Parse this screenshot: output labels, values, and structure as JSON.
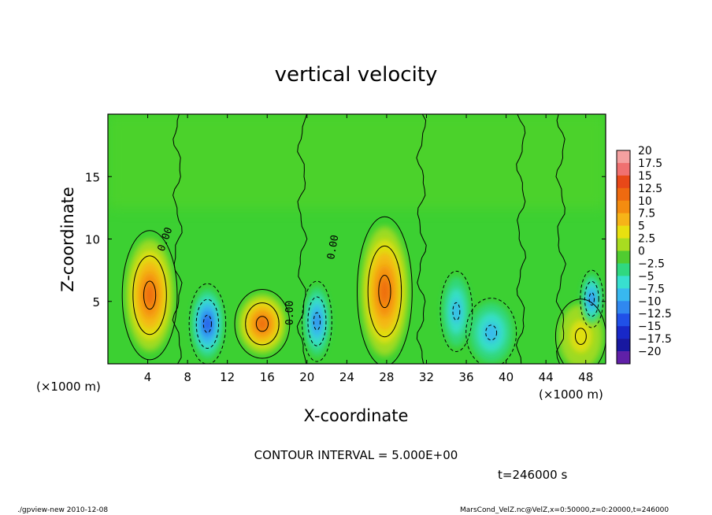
{
  "chart_data": {
    "type": "heatmap",
    "title": "vertical velocity",
    "xlabel": "X-coordinate",
    "ylabel": "Z-coordinate",
    "x_unit_left": "(×1000 m)",
    "x_unit_right": "(×1000 m)",
    "xlim": [
      0,
      50
    ],
    "ylim": [
      0,
      20
    ],
    "xticks": [
      4,
      8,
      12,
      16,
      20,
      24,
      28,
      32,
      36,
      40,
      44,
      48
    ],
    "yticks": [
      5,
      10,
      15
    ],
    "colorbar": {
      "levels": [
        "20",
        "17.5",
        "15",
        "12.5",
        "10",
        "7.5",
        "5",
        "2.5",
        "0",
        "−2.5",
        "−5",
        "−7.5",
        "−10",
        "−12.5",
        "−15",
        "−17.5",
        "−20"
      ],
      "colors": [
        "#f4a0a0",
        "#f07070",
        "#e84818",
        "#ee6a10",
        "#f48c10",
        "#f6b418",
        "#e8e010",
        "#a8dc20",
        "#50cc30",
        "#30d880",
        "#38e0d0",
        "#38b8f0",
        "#3088f0",
        "#2050e8",
        "#1828c8",
        "#1818a0",
        "#6020a8"
      ]
    },
    "contour_interval_text": "CONTOUR INTERVAL = 5.000E+00",
    "contour_labels": [
      "0.00",
      "0.00",
      "0.00"
    ],
    "features": [
      {
        "x": 4.2,
        "z": 5.5,
        "value": 12.5
      },
      {
        "x": 10.0,
        "z": 3.2,
        "value": -12.5
      },
      {
        "x": 15.5,
        "z": 3.2,
        "value": 12.5
      },
      {
        "x": 21.0,
        "z": 3.4,
        "value": -10
      },
      {
        "x": 27.8,
        "z": 5.8,
        "value": 12.5
      },
      {
        "x": 35.0,
        "z": 4.2,
        "value": -7.5
      },
      {
        "x": 38.5,
        "z": 2.5,
        "value": -7.5
      },
      {
        "x": 47.5,
        "z": 2.2,
        "value": 5
      },
      {
        "x": 48.6,
        "z": 5.2,
        "value": -10
      }
    ]
  },
  "footer": {
    "time": "t=246000 s",
    "left_info": "./gpview-new   2010-12-08",
    "right_info": "MarsCond_VelZ.nc@VelZ,x=0:50000,z=0:20000,t=246000"
  }
}
